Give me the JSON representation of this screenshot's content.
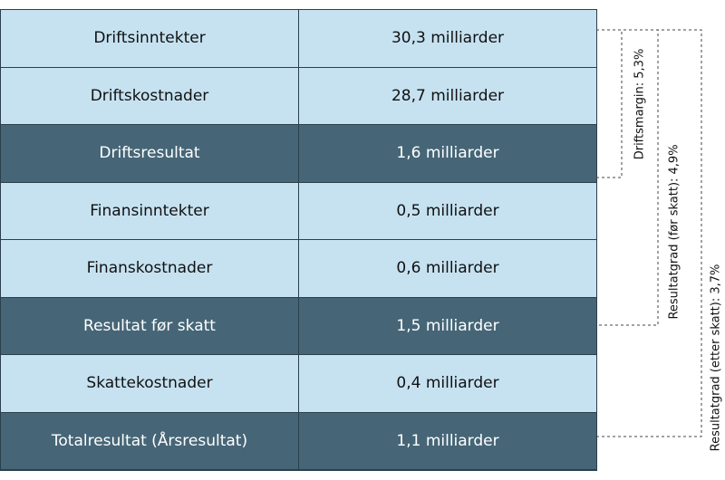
{
  "rows": [
    {
      "label": "Driftsinntekter",
      "value": "30,3 milliarder",
      "style": "light"
    },
    {
      "label": "Driftskostnader",
      "value": "28,7 milliarder",
      "style": "light"
    },
    {
      "label": "Driftsresultat",
      "value": "1,6 milliarder",
      "style": "dark"
    },
    {
      "label": "Finansinntekter",
      "value": "0,5 milliarder",
      "style": "light"
    },
    {
      "label": "Finanskostnader",
      "value": "0,6 milliarder",
      "style": "light"
    },
    {
      "label": "Resultat før skatt",
      "value": "1,5 milliarder",
      "style": "dark"
    },
    {
      "label": "Skattekostnader",
      "value": "0,4 milliarder",
      "style": "light"
    },
    {
      "label": "Totalresultat (Årsresultat)",
      "value": "1,1 milliarder",
      "style": "dark"
    }
  ],
  "brackets": [
    {
      "label": "Driftsmargin: 5,3%"
    },
    {
      "label": "Resultatgrad (før skatt): 4,9%"
    },
    {
      "label": "Resultatgrad (etter skatt): 3,7%"
    }
  ],
  "colors": {
    "light": "#c6e2f1",
    "dark": "#466677",
    "border": "#2b3f4c"
  }
}
